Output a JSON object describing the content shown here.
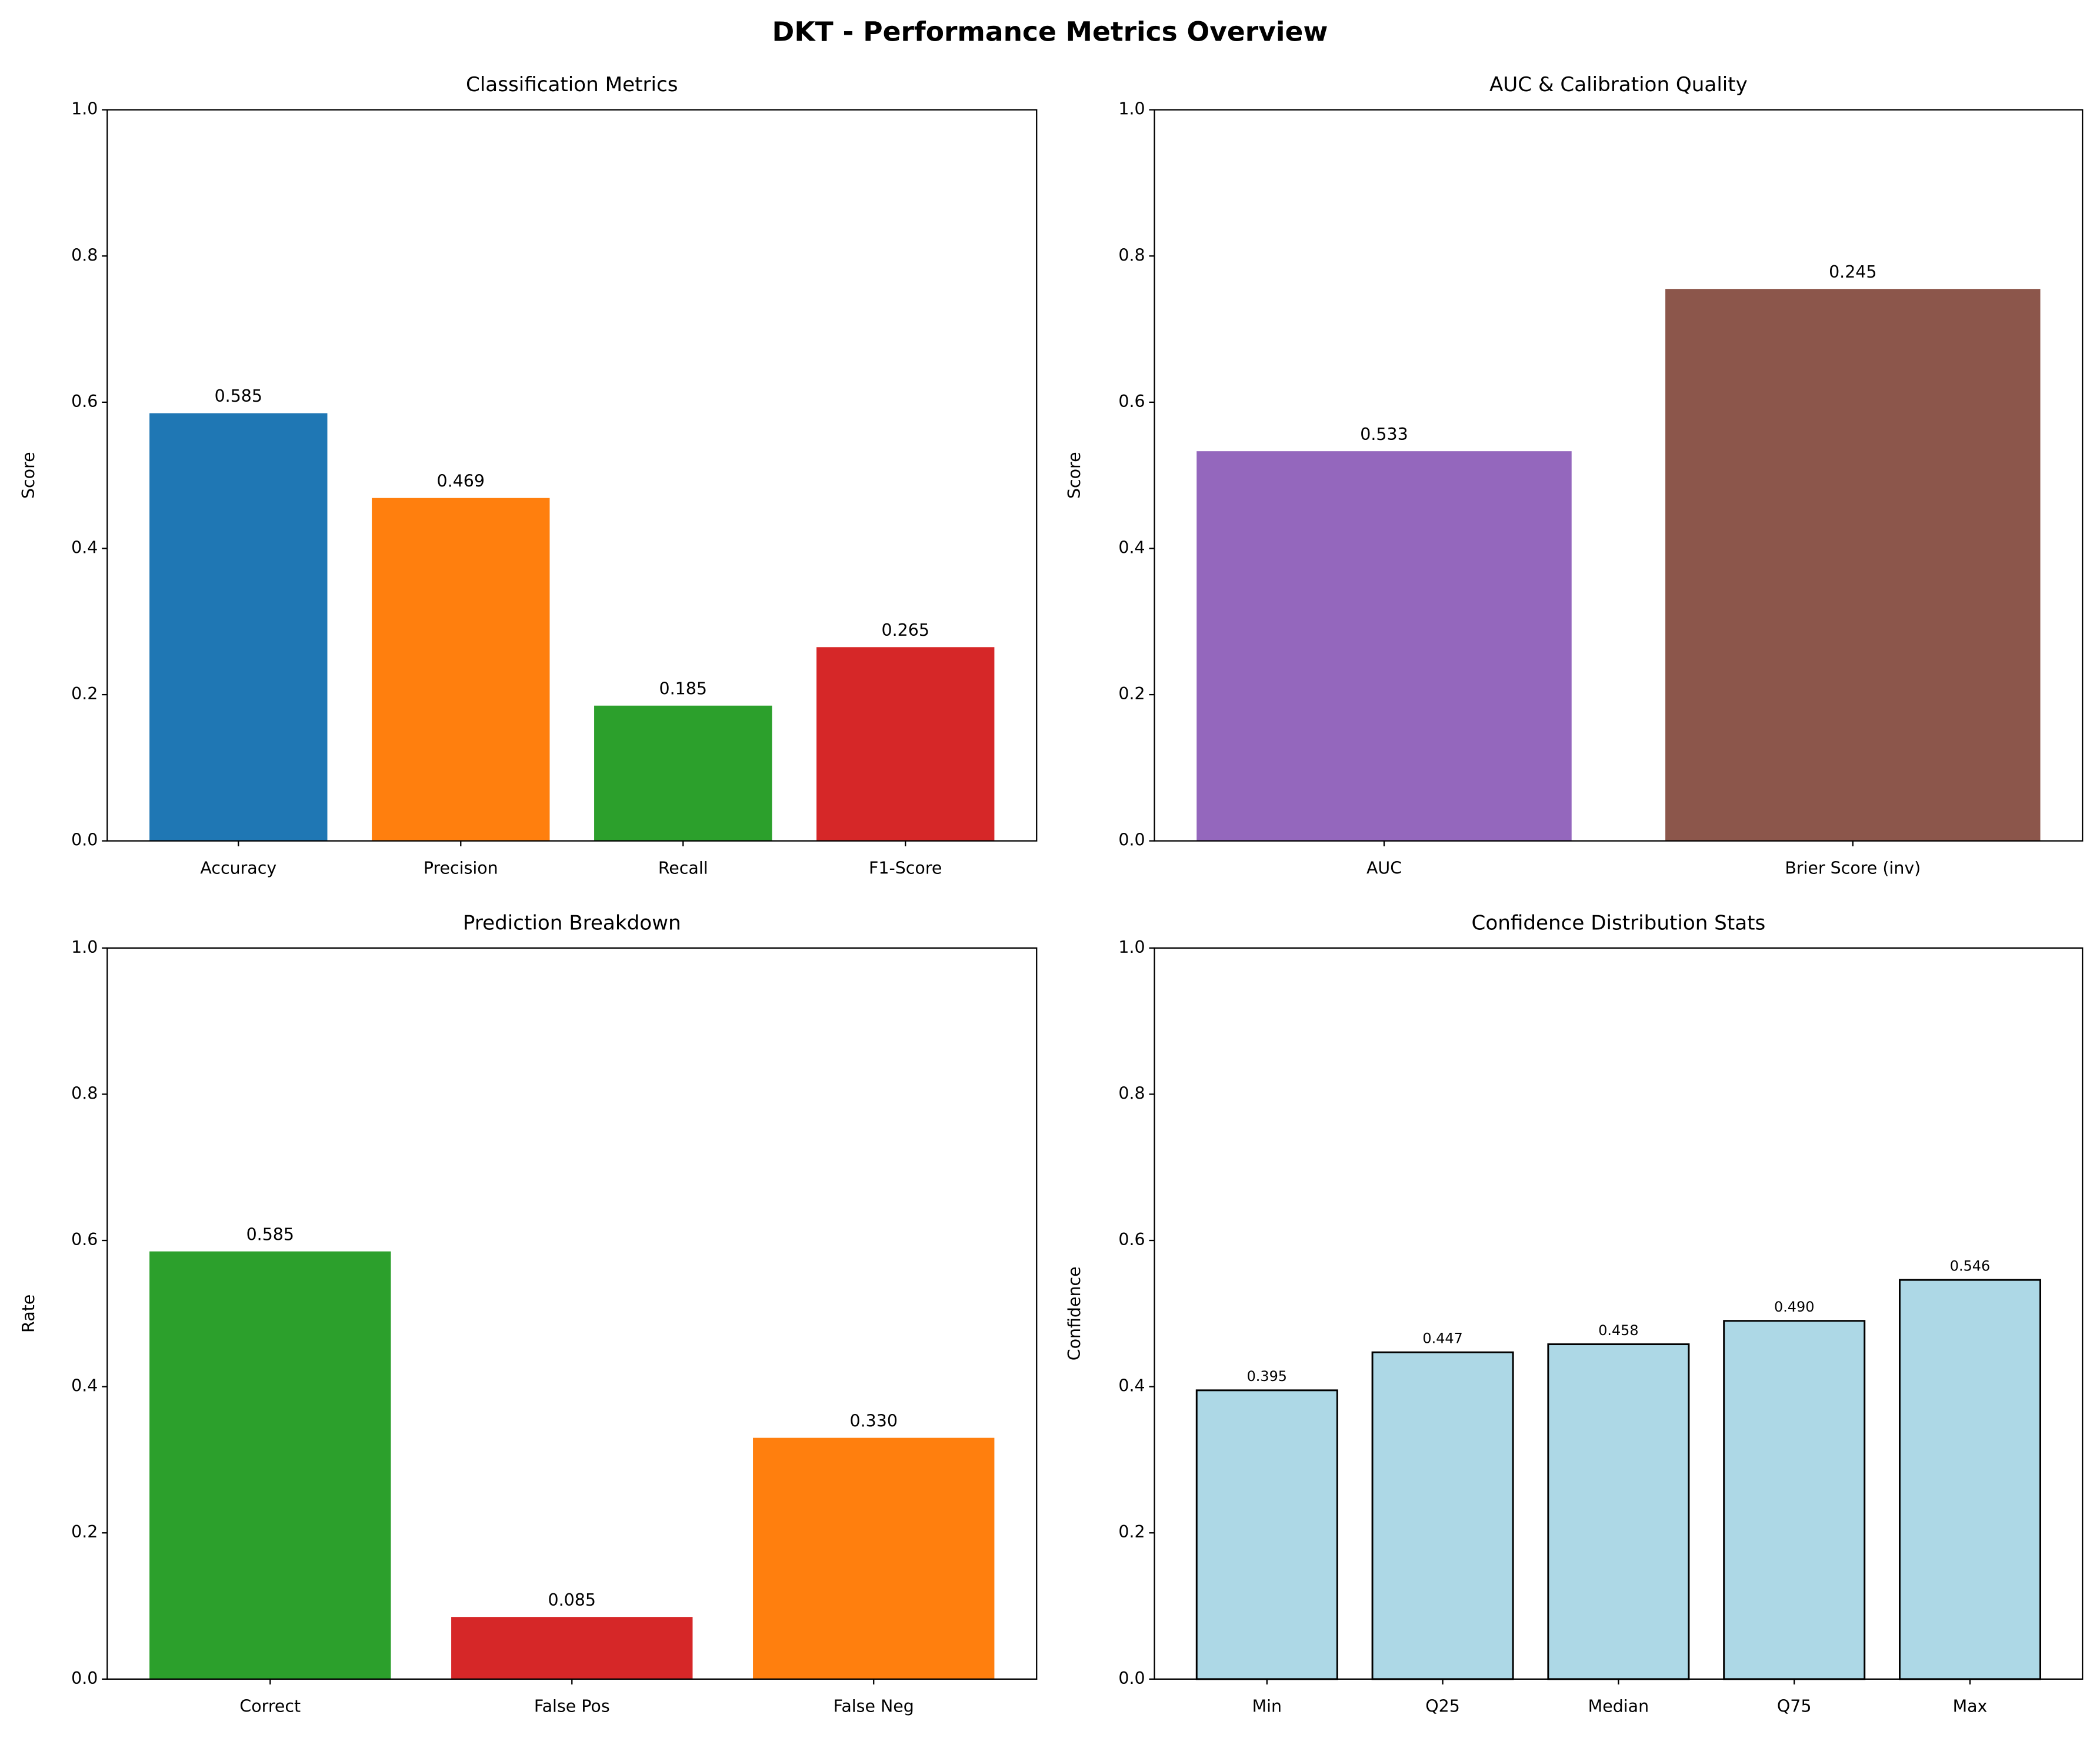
{
  "title": "DKT - Performance Metrics Overview",
  "chart_data": [
    {
      "type": "bar",
      "title": "Classification Metrics",
      "y_label": "Score",
      "categories": [
        "Accuracy",
        "Precision",
        "Recall",
        "F1-Score"
      ],
      "values": [
        0.585,
        0.469,
        0.185,
        0.265
      ],
      "value_labels": [
        "0.585",
        "0.469",
        "0.185",
        "0.265"
      ],
      "colors": [
        "#1f77b4",
        "#ff7f0e",
        "#2ca02c",
        "#d62728"
      ],
      "ylim": [
        0,
        1
      ],
      "yticks": [
        {
          "value": 0,
          "label": "0.0"
        },
        0.2,
        0.4,
        0.6,
        0.8,
        {
          "value": 1,
          "label": "1.0"
        }
      ]
    },
    {
      "type": "bar",
      "title": "AUC & Calibration Quality",
      "y_label": "Score",
      "categories": [
        "AUC",
        "Brier Score (inv)"
      ],
      "values": [
        0.533,
        0.755
      ],
      "annotations": [
        "0.533",
        "0.245"
      ],
      "colors": [
        "#9467bd",
        "#8c564b"
      ],
      "ylim": [
        0,
        1
      ],
      "yticks": [
        {
          "value": 0,
          "label": "0.0"
        },
        0.2,
        0.4,
        0.6,
        0.8,
        {
          "value": 1,
          "label": "1.0"
        }
      ]
    },
    {
      "type": "bar",
      "title": "Prediction Breakdown",
      "y_label": "Rate",
      "categories": [
        "Correct",
        "False Pos",
        "False Neg"
      ],
      "values": [
        0.585,
        0.085,
        0.33
      ],
      "value_labels": [
        "0.585",
        "0.085",
        "0.330"
      ],
      "colors": [
        "#2ca02c",
        "#d62728",
        "#ff7f0e"
      ],
      "ylim": [
        0,
        1
      ],
      "yticks": [
        {
          "value": 0,
          "label": "0.0"
        },
        0.2,
        0.4,
        0.6,
        0.8,
        {
          "value": 1,
          "label": "1.0"
        }
      ]
    },
    {
      "type": "bar",
      "title": "Confidence Distribution Stats",
      "y_label": "Confidence",
      "categories": [
        "Min",
        "Q25",
        "Median",
        "Q75",
        "Max"
      ],
      "values": [
        0.395,
        0.447,
        0.458,
        0.49,
        0.546
      ],
      "value_labels": [
        "0.395",
        "0.447",
        "0.458",
        "0.490",
        "0.546"
      ],
      "colors": [
        "#add8e6",
        "#add8e6",
        "#add8e6",
        "#add8e6",
        "#add8e6"
      ],
      "edgecolor": "#000000",
      "ylim": [
        0,
        1
      ],
      "yticks": [
        {
          "value": 0,
          "label": "0.0"
        },
        0.2,
        0.4,
        0.6,
        0.8,
        {
          "value": 1,
          "label": "1.0"
        }
      ]
    }
  ]
}
